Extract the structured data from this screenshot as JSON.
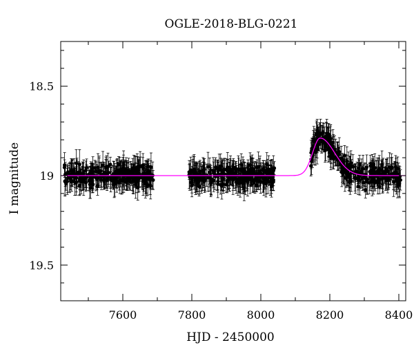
{
  "chart_data": {
    "type": "scatter",
    "title": "OGLE-2018-BLG-0221",
    "xlabel": "HJD - 2450000",
    "ylabel": "I magnitude",
    "xlim": [
      7420,
      8420
    ],
    "ylim": [
      19.7,
      18.25
    ],
    "y_inverted": true,
    "x_ticks": [
      7600,
      7800,
      8000,
      8200,
      8400
    ],
    "y_ticks": [
      18.5,
      19,
      19.5
    ],
    "x_tick_labels": [
      "7600",
      "7800",
      "8000",
      "8200",
      "8400"
    ],
    "y_tick_labels": [
      "18.5",
      "19",
      "19.5"
    ],
    "grid": false,
    "observing_seasons": [
      [
        7430,
        7688
      ],
      [
        7792,
        8042
      ],
      [
        8145,
        8405
      ]
    ],
    "baseline_magnitude": 19.0,
    "typical_error": 0.06,
    "model": {
      "color": "#ff00ff",
      "baseline": 19.0,
      "peak_x": 8172,
      "peak_magnitude": 18.79,
      "rise_width_days": 22,
      "decay_width_days": 42
    },
    "points_color": "#000000"
  }
}
